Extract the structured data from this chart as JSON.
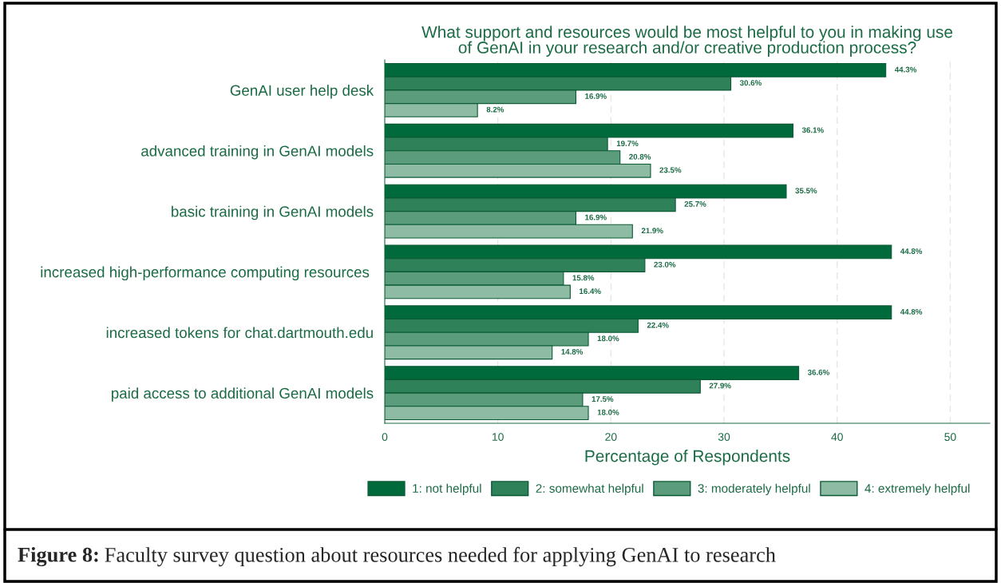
{
  "chart_data": {
    "type": "bar",
    "orientation": "horizontal",
    "title": "What support and resources would be most helpful to you in making use\nof GenAI in your research and/or creative production process?",
    "xlabel": "Percentage of Respondents",
    "categories": [
      "GenAI user help desk",
      "advanced training in GenAI models",
      "basic training in GenAI models",
      "increased high-performance computing resources ",
      "increased tokens for chat.dartmouth.edu",
      "paid access to additional GenAI models"
    ],
    "series": [
      {
        "name": "1: not helpful",
        "color": "#006a3d",
        "values": [
          44.3,
          36.1,
          35.5,
          44.8,
          44.8,
          36.6
        ],
        "value_labels": [
          "44.3%",
          "36.1%",
          "35.5%",
          "44.8%",
          "44.8%",
          "36.6%"
        ]
      },
      {
        "name": "2: somewhat helpful",
        "color": "#2f8159",
        "values": [
          30.6,
          19.7,
          25.7,
          23.0,
          22.4,
          27.9
        ],
        "value_labels": [
          "30.6%",
          "19.7%",
          "25.7%",
          "23.0%",
          "22.4%",
          "27.9%"
        ]
      },
      {
        "name": "3: moderately helpful",
        "color": "#5a9c7b",
        "values": [
          16.9,
          20.8,
          16.9,
          15.8,
          18.0,
          17.5
        ],
        "value_labels": [
          "16.9%",
          "20.8%",
          "16.9%",
          "15.8%",
          "18.0%",
          "17.5%"
        ]
      },
      {
        "name": "4: extremely helpful",
        "color": "#8dbba3",
        "values": [
          8.2,
          23.5,
          21.9,
          16.4,
          14.8,
          18.0
        ],
        "value_labels": [
          "8.2%",
          "23.5%",
          "21.9%",
          "16.4%",
          "14.8%",
          "18.0%"
        ]
      }
    ],
    "xlim": [
      0,
      53.5
    ],
    "xticks": [
      0,
      10,
      20,
      30,
      40,
      50
    ],
    "grid": "x",
    "legend": "bottom",
    "annotations": [
      "Figure 8: Faculty survey question about resources needed for applying GenAI to research"
    ]
  }
}
